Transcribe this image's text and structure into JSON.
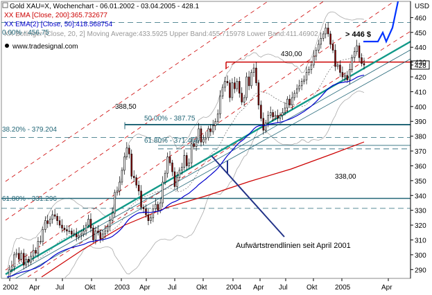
{
  "header": {
    "line1": "Gold XAU=X, Wochenchart - 06.01.2002 - 03.04.2005 - 428.1",
    "line2": "XX EMA [Close, 200]:365.732677",
    "line3": "XX EMA(2) [Close, 50]:418.568754",
    "line4": "XX Bollinger [Close, 20, 2] Moving Average:433.5925  Upper Band:455.715978  Lower Band:411.46902",
    "line4_overlay": "0.00% - 456.75",
    "logo": "www.tradesignal.com"
  },
  "annotations": {
    "price_target": "> 446 $",
    "high_2002": "388,50",
    "level_430": "430,00",
    "level_338": "338,00",
    "fib_50": "50.00% - 387.75",
    "fib_3820": "38.20% - 379.204",
    "fib_6180a": "61.80% - 371.466",
    "fib_6180b": "61.80% - 331.296",
    "trend_note": "Aufwärtstrendlinien seit April 2001"
  },
  "colors": {
    "ema200": "#cc0000",
    "ema50": "#0000cc",
    "bollinger": "#aaaaaa",
    "trendline": "#119988",
    "fib": "#226677",
    "resistance": "#cc0000",
    "candle_up": "#ffffff",
    "candle_down": "#8b0000",
    "arrow": "#0033ff"
  },
  "chart_data": {
    "type": "candlestick",
    "title": "Gold XAU=X, Wochenchart",
    "yunit": "USD",
    "ylim": [
      285,
      470
    ],
    "yticks": [
      290,
      300,
      310,
      320,
      330,
      340,
      350,
      360,
      370,
      380,
      390,
      400,
      410,
      420,
      428,
      430,
      440,
      450,
      460
    ],
    "xticks": [
      "2002",
      "Apr",
      "Jul",
      "Okt",
      "2003",
      "Apr",
      "Jul",
      "Okt",
      "2004",
      "Apr",
      "Jul",
      "Okt",
      "2005",
      "Apr"
    ],
    "last_close": 428.1,
    "horizontal_levels": [
      {
        "label": "430,00",
        "value": 430
      },
      {
        "label": "50.00% - 387.75",
        "value": 387.75
      },
      {
        "label": "38.20% - 379.204",
        "value": 379.204
      },
      {
        "label": "61.80% - 371.466",
        "value": 371.466
      },
      {
        "label": "338,00",
        "value": 338
      },
      {
        "label": "61.80% - 331.296",
        "value": 331.296
      },
      {
        "label": "0.00% - 456.75",
        "value": 456.75
      }
    ],
    "closes": [
      282,
      290,
      292,
      300,
      301,
      297,
      301,
      293,
      297,
      295,
      299,
      303,
      301,
      309,
      309,
      317,
      323,
      321,
      324,
      327,
      326,
      323,
      320,
      318,
      317,
      316,
      316,
      314,
      314,
      312,
      313,
      314,
      316,
      320,
      324,
      318,
      310,
      316,
      315,
      311,
      314,
      316,
      319,
      323,
      328,
      342,
      343,
      349,
      357,
      366,
      372,
      368,
      353,
      352,
      347,
      343,
      332,
      331,
      327,
      323,
      325,
      331,
      334,
      330,
      335,
      349,
      355,
      366,
      362,
      356,
      346,
      352,
      357,
      359,
      367,
      360,
      362,
      375,
      373,
      377,
      385,
      376,
      378,
      379,
      385,
      383,
      387,
      390,
      395,
      407,
      413,
      417,
      416,
      406,
      416,
      412,
      417,
      409,
      403,
      406,
      420,
      414,
      423,
      426,
      416,
      401,
      392,
      384,
      389,
      394,
      396,
      393,
      394,
      392,
      394,
      396,
      399,
      405,
      401,
      406,
      409,
      412,
      414,
      417,
      418,
      423,
      425,
      428,
      434,
      438,
      442,
      446,
      449,
      453,
      449,
      442,
      438,
      427,
      428,
      423,
      420,
      421,
      418,
      425,
      433,
      437,
      441,
      433,
      429,
      428
    ]
  }
}
